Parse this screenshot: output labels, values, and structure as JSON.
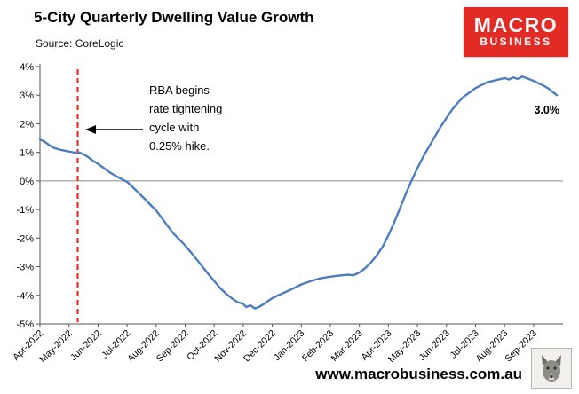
{
  "header": {
    "title": "5-City Quarterly Dwelling Value Growth",
    "source": "Source: CoreLogic",
    "logo": {
      "line1": "MACRO",
      "line2": "BUSINESS",
      "bg_color": "#e32b25",
      "text_color": "#ffffff"
    }
  },
  "footer": {
    "url": "www.macrobusiness.com.au"
  },
  "chart_data": {
    "type": "line",
    "title": "5-City Quarterly Dwelling Value Growth",
    "subtitle": "Source: CoreLogic",
    "line_color": "#4c7dbe",
    "zero_line_color": "#8c8c8c",
    "axis_color": "#555555",
    "x_axis": {
      "tick_labels": [
        "Apr-2022",
        "May-2022",
        "Jun-2022",
        "Jul-2022",
        "Aug-2022",
        "Sep-2022",
        "Oct-2022",
        "Nov-2022",
        "Dec-2022",
        "Jan-2023",
        "Feb-2023",
        "Mar-2023",
        "Apr-2023",
        "May-2023",
        "Jun-2023",
        "Jul-2023",
        "Aug-2023",
        "Sep-2023"
      ]
    },
    "y_axis": {
      "tick_labels": [
        "4%",
        "3%",
        "2%",
        "1%",
        "0%",
        "-1%",
        "-2%",
        "-3%",
        "-4%",
        "-5%"
      ],
      "tick_values": [
        4,
        3,
        2,
        1,
        0,
        -1,
        -2,
        -3,
        -4,
        -5
      ],
      "min": -5,
      "max": 4
    },
    "event_line": {
      "x_months": 1.3,
      "color": "#ed1c16",
      "style": "dashed",
      "meaning": "RBA first rate hike"
    },
    "annotation": {
      "lines": [
        "RBA begins",
        "rate tightening",
        "cycle with",
        "0.25% hike."
      ]
    },
    "end_label": "3.0%",
    "series": [
      {
        "name": "5-city quarterly dwelling value growth (%)",
        "x_unit": "months since Apr-2022",
        "points": [
          [
            0,
            1.45
          ],
          [
            0.15,
            1.38
          ],
          [
            0.3,
            1.27
          ],
          [
            0.45,
            1.17
          ],
          [
            0.6,
            1.12
          ],
          [
            0.75,
            1.08
          ],
          [
            0.9,
            1.05
          ],
          [
            1.05,
            1.02
          ],
          [
            1.2,
            0.99
          ],
          [
            1.35,
            1.0
          ],
          [
            1.5,
            0.93
          ],
          [
            1.65,
            0.84
          ],
          [
            1.8,
            0.72
          ],
          [
            2.0,
            0.6
          ],
          [
            2.2,
            0.45
          ],
          [
            2.4,
            0.3
          ],
          [
            2.6,
            0.18
          ],
          [
            2.8,
            0.07
          ],
          [
            3.0,
            -0.03
          ],
          [
            3.2,
            -0.22
          ],
          [
            3.4,
            -0.42
          ],
          [
            3.6,
            -0.62
          ],
          [
            3.8,
            -0.83
          ],
          [
            4.0,
            -1.03
          ],
          [
            4.2,
            -1.3
          ],
          [
            4.4,
            -1.58
          ],
          [
            4.6,
            -1.84
          ],
          [
            4.8,
            -2.05
          ],
          [
            5.0,
            -2.26
          ],
          [
            5.2,
            -2.5
          ],
          [
            5.4,
            -2.75
          ],
          [
            5.6,
            -3.0
          ],
          [
            5.8,
            -3.26
          ],
          [
            6.0,
            -3.5
          ],
          [
            6.2,
            -3.74
          ],
          [
            6.4,
            -3.94
          ],
          [
            6.6,
            -4.1
          ],
          [
            6.8,
            -4.24
          ],
          [
            7.0,
            -4.3
          ],
          [
            7.1,
            -4.41
          ],
          [
            7.25,
            -4.35
          ],
          [
            7.4,
            -4.46
          ],
          [
            7.55,
            -4.4
          ],
          [
            7.7,
            -4.31
          ],
          [
            7.85,
            -4.2
          ],
          [
            8.0,
            -4.1
          ],
          [
            8.2,
            -4.0
          ],
          [
            8.4,
            -3.91
          ],
          [
            8.6,
            -3.82
          ],
          [
            8.8,
            -3.72
          ],
          [
            9.0,
            -3.62
          ],
          [
            9.2,
            -3.55
          ],
          [
            9.4,
            -3.48
          ],
          [
            9.6,
            -3.42
          ],
          [
            9.8,
            -3.38
          ],
          [
            10.0,
            -3.35
          ],
          [
            10.2,
            -3.32
          ],
          [
            10.4,
            -3.3
          ],
          [
            10.6,
            -3.28
          ],
          [
            10.8,
            -3.3
          ],
          [
            11.0,
            -3.2
          ],
          [
            11.2,
            -3.05
          ],
          [
            11.4,
            -2.85
          ],
          [
            11.6,
            -2.6
          ],
          [
            11.8,
            -2.3
          ],
          [
            12.0,
            -1.9
          ],
          [
            12.2,
            -1.45
          ],
          [
            12.4,
            -0.95
          ],
          [
            12.6,
            -0.45
          ],
          [
            12.8,
            0.02
          ],
          [
            13.0,
            0.45
          ],
          [
            13.2,
            0.85
          ],
          [
            13.4,
            1.2
          ],
          [
            13.6,
            1.55
          ],
          [
            13.8,
            1.9
          ],
          [
            14.0,
            2.2
          ],
          [
            14.2,
            2.5
          ],
          [
            14.4,
            2.75
          ],
          [
            14.6,
            2.95
          ],
          [
            14.8,
            3.1
          ],
          [
            15.0,
            3.25
          ],
          [
            15.2,
            3.35
          ],
          [
            15.4,
            3.45
          ],
          [
            15.6,
            3.5
          ],
          [
            15.8,
            3.55
          ],
          [
            16.0,
            3.6
          ],
          [
            16.15,
            3.55
          ],
          [
            16.3,
            3.62
          ],
          [
            16.45,
            3.57
          ],
          [
            16.6,
            3.65
          ],
          [
            16.75,
            3.6
          ],
          [
            16.9,
            3.54
          ],
          [
            17.05,
            3.48
          ],
          [
            17.2,
            3.4
          ],
          [
            17.35,
            3.33
          ],
          [
            17.5,
            3.24
          ],
          [
            17.65,
            3.12
          ],
          [
            17.8,
            3.0
          ]
        ]
      }
    ]
  }
}
